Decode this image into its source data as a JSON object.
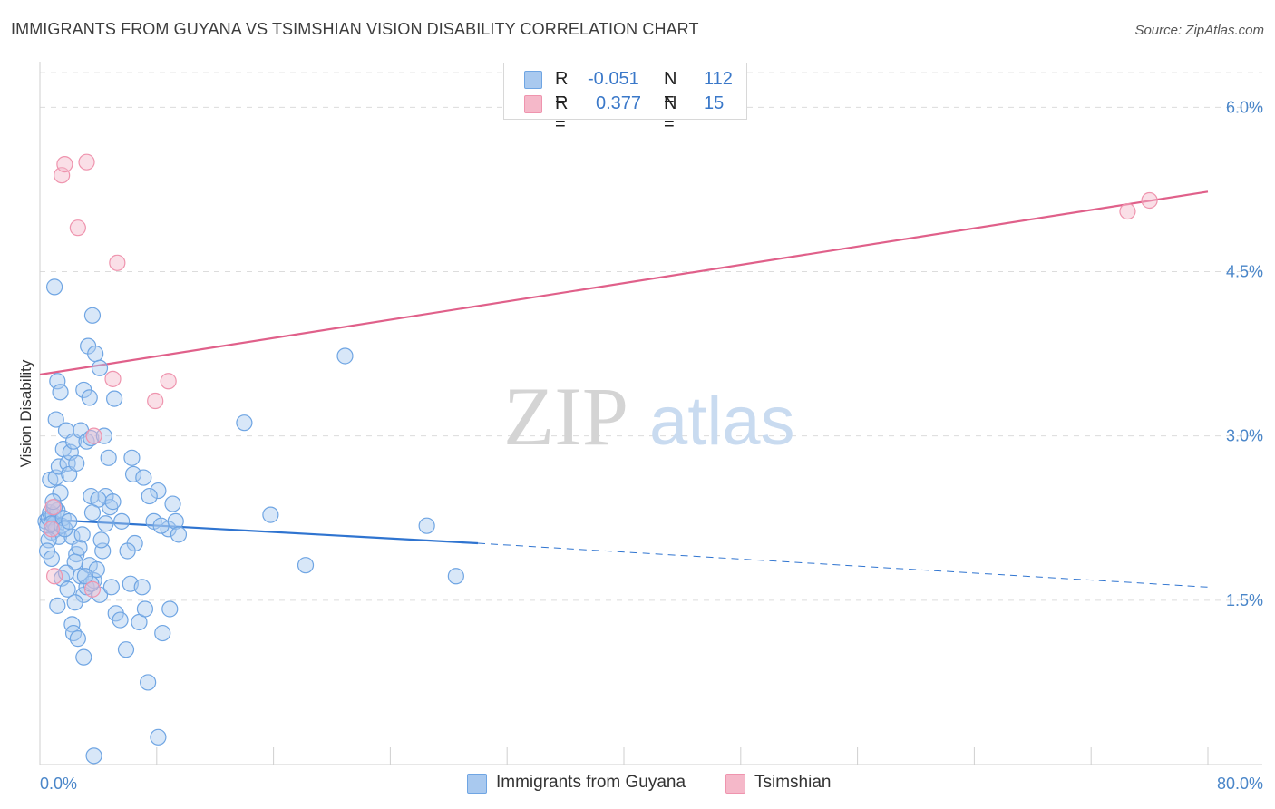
{
  "title": "IMMIGRANTS FROM GUYANA VS TSIMSHIAN VISION DISABILITY CORRELATION CHART",
  "source": "Source: ZipAtlas.com",
  "watermark": {
    "zip": "ZIP",
    "atlas": "atlas"
  },
  "legend_top": {
    "rows": [
      {
        "r_label": "R =",
        "r_value": "-0.051",
        "n_label": "N =",
        "n_value": "112",
        "color": "#a9c9ef"
      },
      {
        "r_label": "R =",
        "r_value": "0.377",
        "n_label": "N =",
        "n_value": "15",
        "color": "#f5b8c9"
      }
    ]
  },
  "legend_bottom": [
    {
      "label": "Immigrants from Guyana",
      "color": "#a9c9ef"
    },
    {
      "label": "Tsimshian",
      "color": "#f5b8c9"
    }
  ],
  "chart_data": {
    "type": "scatter",
    "ylabel": "Vision Disability",
    "xlim": [
      0,
      80
    ],
    "ylim": [
      0,
      6.4
    ],
    "y_ticks": [
      1.5,
      3.0,
      4.5,
      6.0
    ],
    "y_tick_labels": [
      "1.5%",
      "3.0%",
      "4.5%",
      "6.0%"
    ],
    "x_tick_labels": [
      "0.0%",
      "80.0%"
    ],
    "grid": true,
    "series": [
      {
        "name": "Immigrants from Guyana",
        "color": "#6fa5e3",
        "fill": "#a9c9ef",
        "trend": {
          "x0": 0,
          "y0": 2.24,
          "x1": 30,
          "y1": 2.02,
          "dash_to_x": 80,
          "dash_to_y": 1.62,
          "color": "#2f74d0"
        },
        "points": [
          [
            0.4,
            2.22
          ],
          [
            0.5,
            2.18
          ],
          [
            0.6,
            2.25
          ],
          [
            0.7,
            2.3
          ],
          [
            0.8,
            2.12
          ],
          [
            0.9,
            2.28
          ],
          [
            1.0,
            2.2
          ],
          [
            1.1,
            2.15
          ],
          [
            1.2,
            2.32
          ],
          [
            1.3,
            2.08
          ],
          [
            0.6,
            2.05
          ],
          [
            0.8,
            2.2
          ],
          [
            1.0,
            2.35
          ],
          [
            0.5,
            1.95
          ],
          [
            0.7,
            2.6
          ],
          [
            1.1,
            2.62
          ],
          [
            1.3,
            2.72
          ],
          [
            1.4,
            2.48
          ],
          [
            1.5,
            2.18
          ],
          [
            1.6,
            2.25
          ],
          [
            1.0,
            4.36
          ],
          [
            1.2,
            3.5
          ],
          [
            1.4,
            3.4
          ],
          [
            1.1,
            3.15
          ],
          [
            1.6,
            2.88
          ],
          [
            1.8,
            3.05
          ],
          [
            1.9,
            2.75
          ],
          [
            2.0,
            2.65
          ],
          [
            2.1,
            2.85
          ],
          [
            2.3,
            2.95
          ],
          [
            2.5,
            2.75
          ],
          [
            2.8,
            3.05
          ],
          [
            3.0,
            3.42
          ],
          [
            3.3,
            3.82
          ],
          [
            3.2,
            2.95
          ],
          [
            3.5,
            2.98
          ],
          [
            3.4,
            3.35
          ],
          [
            3.6,
            4.1
          ],
          [
            3.8,
            3.75
          ],
          [
            4.1,
            3.62
          ],
          [
            4.4,
            3.0
          ],
          [
            4.7,
            2.8
          ],
          [
            5.1,
            3.34
          ],
          [
            2.2,
            2.08
          ],
          [
            2.5,
            1.92
          ],
          [
            2.7,
            1.98
          ],
          [
            2.4,
            1.85
          ],
          [
            2.8,
            1.72
          ],
          [
            3.0,
            1.55
          ],
          [
            3.2,
            1.62
          ],
          [
            3.4,
            1.82
          ],
          [
            3.7,
            1.68
          ],
          [
            3.9,
            1.78
          ],
          [
            4.1,
            1.55
          ],
          [
            4.5,
            2.45
          ],
          [
            4.8,
            2.35
          ],
          [
            4.3,
            1.95
          ],
          [
            4.9,
            1.62
          ],
          [
            5.2,
            1.38
          ],
          [
            5.5,
            1.32
          ],
          [
            5.9,
            1.05
          ],
          [
            6.2,
            1.65
          ],
          [
            6.5,
            2.02
          ],
          [
            6.8,
            1.3
          ],
          [
            7.2,
            1.42
          ],
          [
            7.4,
            0.75
          ],
          [
            7.8,
            2.22
          ],
          [
            8.1,
            2.5
          ],
          [
            8.4,
            1.2
          ],
          [
            8.8,
            2.15
          ],
          [
            9.1,
            2.38
          ],
          [
            9.3,
            2.22
          ],
          [
            9.5,
            2.1
          ],
          [
            8.9,
            1.42
          ],
          [
            1.2,
            1.45
          ],
          [
            1.5,
            1.7
          ],
          [
            1.8,
            1.75
          ],
          [
            2.2,
            1.28
          ],
          [
            2.3,
            1.2
          ],
          [
            2.6,
            1.15
          ],
          [
            3.5,
            1.65
          ],
          [
            3.0,
            0.98
          ],
          [
            3.5,
            2.45
          ],
          [
            4.0,
            2.42
          ],
          [
            4.5,
            2.2
          ],
          [
            6.3,
            2.8
          ],
          [
            6.4,
            2.65
          ],
          [
            7.1,
            2.62
          ],
          [
            7.5,
            2.45
          ],
          [
            8.3,
            2.18
          ],
          [
            3.7,
            0.08
          ],
          [
            8.1,
            0.25
          ],
          [
            14.0,
            3.12
          ],
          [
            15.8,
            2.28
          ],
          [
            18.2,
            1.82
          ],
          [
            20.9,
            3.73
          ],
          [
            26.5,
            2.18
          ],
          [
            28.5,
            1.72
          ],
          [
            0.9,
            2.4
          ],
          [
            1.7,
            2.15
          ],
          [
            2.0,
            2.22
          ],
          [
            2.9,
            2.1
          ],
          [
            3.6,
            2.3
          ],
          [
            4.2,
            2.05
          ],
          [
            5.0,
            2.4
          ],
          [
            5.6,
            2.22
          ],
          [
            6.0,
            1.95
          ],
          [
            7.0,
            1.62
          ],
          [
            0.8,
            1.88
          ],
          [
            1.9,
            1.6
          ],
          [
            2.4,
            1.48
          ],
          [
            3.1,
            1.72
          ]
        ]
      },
      {
        "name": "Tsimshian",
        "color": "#ef94ae",
        "fill": "#f5b8c9",
        "trend": {
          "x0": 0,
          "y0": 3.56,
          "x1": 80,
          "y1": 5.23,
          "color": "#e0608a"
        },
        "points": [
          [
            1.5,
            5.38
          ],
          [
            1.7,
            5.48
          ],
          [
            3.2,
            5.5
          ],
          [
            2.6,
            4.9
          ],
          [
            5.3,
            4.58
          ],
          [
            0.9,
            2.35
          ],
          [
            0.8,
            2.15
          ],
          [
            1.0,
            1.72
          ],
          [
            3.6,
            1.6
          ],
          [
            5.0,
            3.52
          ],
          [
            3.7,
            3.0
          ],
          [
            7.9,
            3.32
          ],
          [
            8.8,
            3.5
          ],
          [
            74.5,
            5.05
          ],
          [
            76.0,
            5.15
          ]
        ]
      }
    ]
  }
}
